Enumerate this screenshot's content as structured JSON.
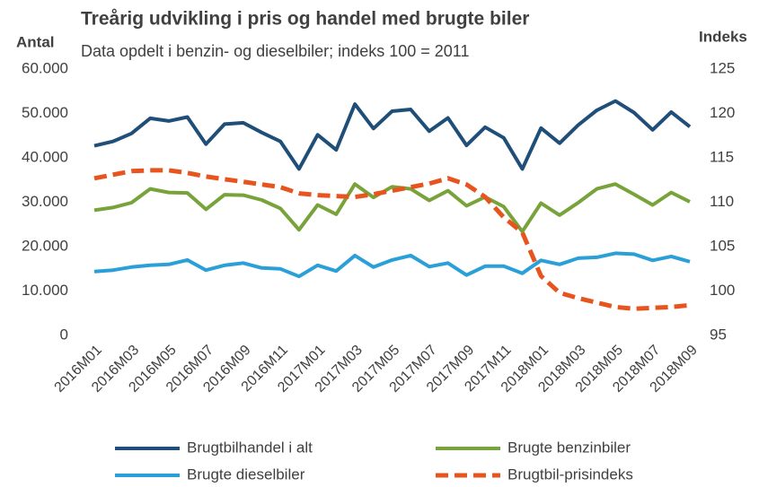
{
  "chart_data": {
    "type": "line",
    "title": "Treårig udvikling i pris og handel med brugte biler",
    "subtitle": "Data opdelt i benzin- og dieselbiler; indeks 100 = 2011",
    "y_label": "Antal",
    "y2_label": "Indeks",
    "categories": [
      "2016M01",
      null,
      "2016M03",
      null,
      "2016M05",
      null,
      "2016M07",
      null,
      "2016M09",
      null,
      "2016M11",
      null,
      "2017M01",
      null,
      "2017M03",
      null,
      "2017M05",
      null,
      "2017M07",
      null,
      "2017M09",
      null,
      "2017M11",
      null,
      "2018M01",
      null,
      "2018M03",
      null,
      "2018M05",
      null,
      "2018M07",
      null,
      "2018M09"
    ],
    "ylim": [
      0,
      60000
    ],
    "yticks": [
      0,
      {
        "value": 10000,
        "label": "10.000"
      },
      {
        "value": 20000,
        "label": "20.000"
      },
      {
        "value": 30000,
        "label": "30.000"
      },
      {
        "value": 40000,
        "label": "40.000"
      },
      {
        "value": 50000,
        "label": "50.000"
      },
      {
        "value": 60000,
        "label": "60.000"
      }
    ],
    "y2lim": [
      95,
      125
    ],
    "y2ticks": [
      95,
      100,
      105,
      110,
      115,
      120,
      125
    ],
    "grid": false,
    "series": [
      {
        "name": "Brugtbilhandel i alt",
        "color": "#1f4e79",
        "style": "solid",
        "values": [
          42700,
          43700,
          45500,
          48900,
          48300,
          49200,
          43100,
          47600,
          47900,
          45700,
          43700,
          37500,
          45200,
          41800,
          52100,
          46600,
          50500,
          50900,
          46000,
          49000,
          42800,
          46900,
          44500,
          37500,
          46700,
          43300,
          47400,
          50700,
          52800,
          50200,
          46300,
          50300,
          47000
        ]
      },
      {
        "name": "Brugte benzinbiler",
        "color": "#77a33a",
        "style": "solid",
        "values": [
          28200,
          28800,
          29900,
          33000,
          32200,
          32100,
          28400,
          31700,
          31600,
          30500,
          28600,
          23800,
          29400,
          27300,
          34100,
          31100,
          33500,
          33000,
          30400,
          32600,
          29200,
          31200,
          29000,
          23400,
          29800,
          27100,
          29900,
          33000,
          34100,
          31800,
          29400,
          32200,
          30100
        ]
      },
      {
        "name": "Brugte dieselbiler",
        "color": "#2a9fd8",
        "style": "solid",
        "values": [
          14400,
          14700,
          15400,
          15800,
          16000,
          17000,
          14700,
          15800,
          16300,
          15200,
          15000,
          13300,
          15800,
          14500,
          18000,
          15400,
          17000,
          18000,
          15500,
          16300,
          13600,
          15600,
          15600,
          14000,
          16900,
          16000,
          17400,
          17600,
          18500,
          18300,
          16900,
          17800,
          16600
        ]
      },
      {
        "name": "Brugtbil-prisindeks",
        "color": "#e8541e",
        "style": "dashed",
        "axis": "y2",
        "values": [
          112.7,
          113.1,
          113.5,
          113.6,
          113.6,
          113.3,
          112.9,
          112.6,
          112.3,
          112.0,
          111.7,
          111.0,
          110.8,
          110.7,
          110.6,
          110.9,
          111.3,
          111.7,
          112.1,
          112.7,
          112.0,
          110.6,
          108.3,
          106.6,
          101.7,
          99.8,
          99.2,
          98.7,
          98.2,
          98.0,
          98.1,
          98.2,
          98.4
        ]
      }
    ]
  }
}
